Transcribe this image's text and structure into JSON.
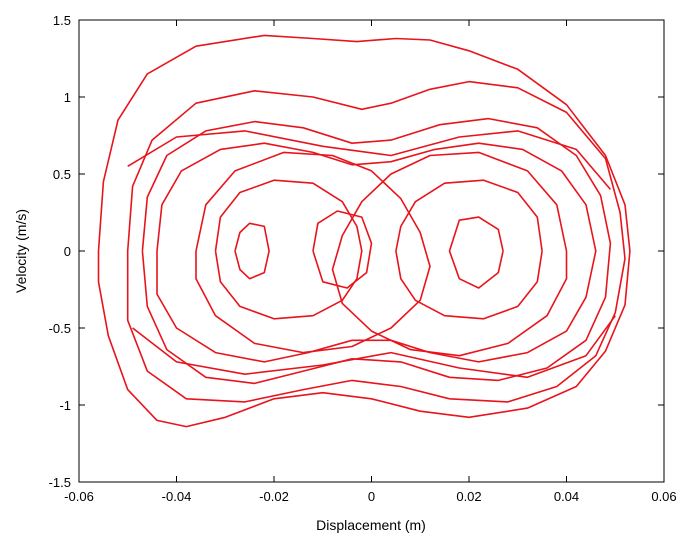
{
  "chart_data": {
    "type": "line",
    "title": "",
    "xlabel": "Displacement (m)",
    "ylabel": "Velocity (m/s)",
    "xlim": [
      -0.06,
      0.06
    ],
    "ylim": [
      -1.5,
      1.5
    ],
    "x_ticks": [
      "-0.06",
      "-0.04",
      "-0.02",
      "0",
      "0.02",
      "0.04",
      "0.06"
    ],
    "y_ticks": [
      "1.5",
      "1",
      "0.5",
      "0",
      "-0.5",
      "-1",
      "-1.5"
    ],
    "x_tick_values": [
      -0.06,
      -0.04,
      -0.02,
      0,
      0.02,
      0.04,
      0.06
    ],
    "y_tick_values": [
      1.5,
      1,
      0.5,
      0,
      -0.5,
      -1,
      -1.5
    ],
    "grid": false,
    "line_color": "#e8141c",
    "series": [
      {
        "values": [
          [
            -0.056,
            0.0
          ],
          [
            -0.055,
            0.45
          ],
          [
            -0.052,
            0.85
          ],
          [
            -0.046,
            1.15
          ],
          [
            -0.036,
            1.33
          ],
          [
            -0.022,
            1.4
          ],
          [
            -0.012,
            1.38
          ],
          [
            -0.003,
            1.36
          ],
          [
            0.005,
            1.38
          ],
          [
            0.012,
            1.37
          ],
          [
            0.02,
            1.3
          ],
          [
            0.03,
            1.18
          ],
          [
            0.04,
            0.95
          ],
          [
            0.048,
            0.62
          ],
          [
            0.052,
            0.3
          ],
          [
            0.053,
            0.0
          ],
          [
            0.052,
            -0.35
          ],
          [
            0.048,
            -0.65
          ],
          [
            0.042,
            -0.88
          ],
          [
            0.032,
            -1.02
          ],
          [
            0.02,
            -1.08
          ],
          [
            0.01,
            -1.04
          ],
          [
            0.0,
            -0.96
          ],
          [
            -0.01,
            -0.92
          ],
          [
            -0.02,
            -0.96
          ],
          [
            -0.03,
            -1.08
          ],
          [
            -0.038,
            -1.14
          ],
          [
            -0.044,
            -1.1
          ],
          [
            -0.05,
            -0.9
          ],
          [
            -0.054,
            -0.55
          ],
          [
            -0.056,
            -0.2
          ],
          [
            -0.056,
            0.0
          ]
        ]
      },
      {
        "values": [
          [
            -0.05,
            0.0
          ],
          [
            -0.049,
            0.42
          ],
          [
            -0.045,
            0.72
          ],
          [
            -0.036,
            0.96
          ],
          [
            -0.024,
            1.04
          ],
          [
            -0.012,
            1.0
          ],
          [
            -0.002,
            0.92
          ],
          [
            0.004,
            0.96
          ],
          [
            0.012,
            1.05
          ],
          [
            0.02,
            1.1
          ],
          [
            0.03,
            1.06
          ],
          [
            0.04,
            0.9
          ],
          [
            0.048,
            0.6
          ],
          [
            0.051,
            0.25
          ],
          [
            0.052,
            -0.05
          ],
          [
            0.05,
            -0.4
          ],
          [
            0.046,
            -0.68
          ],
          [
            0.038,
            -0.88
          ],
          [
            0.028,
            -0.98
          ],
          [
            0.016,
            -0.96
          ],
          [
            0.006,
            -0.88
          ],
          [
            -0.004,
            -0.84
          ],
          [
            -0.014,
            -0.9
          ],
          [
            -0.026,
            -0.98
          ],
          [
            -0.038,
            -0.96
          ],
          [
            -0.046,
            -0.78
          ],
          [
            -0.05,
            -0.45
          ],
          [
            -0.05,
            0.0
          ]
        ]
      },
      {
        "values": [
          [
            -0.047,
            0.0
          ],
          [
            -0.046,
            0.35
          ],
          [
            -0.042,
            0.62
          ],
          [
            -0.034,
            0.78
          ],
          [
            -0.024,
            0.84
          ],
          [
            -0.014,
            0.8
          ],
          [
            -0.004,
            0.7
          ],
          [
            0.004,
            0.72
          ],
          [
            0.014,
            0.82
          ],
          [
            0.024,
            0.86
          ],
          [
            0.034,
            0.8
          ],
          [
            0.042,
            0.62
          ],
          [
            0.047,
            0.36
          ],
          [
            0.049,
            0.05
          ],
          [
            0.048,
            -0.3
          ],
          [
            0.044,
            -0.58
          ],
          [
            0.036,
            -0.76
          ],
          [
            0.026,
            -0.84
          ],
          [
            0.016,
            -0.82
          ],
          [
            0.006,
            -0.72
          ],
          [
            -0.004,
            -0.7
          ],
          [
            -0.014,
            -0.78
          ],
          [
            -0.024,
            -0.86
          ],
          [
            -0.034,
            -0.82
          ],
          [
            -0.042,
            -0.64
          ],
          [
            -0.046,
            -0.36
          ],
          [
            -0.047,
            0.0
          ]
        ]
      },
      {
        "values": [
          [
            -0.044,
            0.0
          ],
          [
            -0.043,
            0.3
          ],
          [
            -0.039,
            0.52
          ],
          [
            -0.031,
            0.66
          ],
          [
            -0.022,
            0.7
          ],
          [
            -0.012,
            0.64
          ],
          [
            -0.004,
            0.56
          ],
          [
            0.004,
            0.58
          ],
          [
            0.013,
            0.66
          ],
          [
            0.022,
            0.7
          ],
          [
            0.031,
            0.66
          ],
          [
            0.039,
            0.52
          ],
          [
            0.044,
            0.3
          ],
          [
            0.046,
            0.0
          ],
          [
            0.044,
            -0.3
          ],
          [
            0.04,
            -0.52
          ],
          [
            0.032,
            -0.66
          ],
          [
            0.022,
            -0.72
          ],
          [
            0.012,
            -0.66
          ],
          [
            0.004,
            -0.58
          ],
          [
            -0.004,
            -0.58
          ],
          [
            -0.013,
            -0.66
          ],
          [
            -0.022,
            -0.72
          ],
          [
            -0.032,
            -0.66
          ],
          [
            -0.04,
            -0.5
          ],
          [
            -0.044,
            -0.28
          ],
          [
            -0.044,
            0.0
          ]
        ]
      },
      {
        "values": [
          [
            -0.036,
            0.0
          ],
          [
            -0.034,
            0.3
          ],
          [
            -0.028,
            0.52
          ],
          [
            -0.018,
            0.64
          ],
          [
            -0.008,
            0.62
          ],
          [
            0.0,
            0.52
          ],
          [
            0.006,
            0.34
          ],
          [
            0.01,
            0.12
          ],
          [
            0.012,
            -0.1
          ],
          [
            0.01,
            -0.32
          ],
          [
            0.004,
            -0.5
          ],
          [
            -0.004,
            -0.62
          ],
          [
            -0.014,
            -0.66
          ],
          [
            -0.024,
            -0.6
          ],
          [
            -0.032,
            -0.42
          ],
          [
            -0.036,
            -0.18
          ],
          [
            -0.036,
            0.0
          ]
        ]
      },
      {
        "values": [
          [
            0.04,
            0.0
          ],
          [
            0.038,
            0.3
          ],
          [
            0.032,
            0.52
          ],
          [
            0.022,
            0.64
          ],
          [
            0.012,
            0.62
          ],
          [
            0.004,
            0.5
          ],
          [
            -0.002,
            0.32
          ],
          [
            -0.006,
            0.1
          ],
          [
            -0.008,
            -0.12
          ],
          [
            -0.006,
            -0.34
          ],
          [
            0.0,
            -0.52
          ],
          [
            0.008,
            -0.64
          ],
          [
            0.018,
            -0.68
          ],
          [
            0.028,
            -0.6
          ],
          [
            0.036,
            -0.42
          ],
          [
            0.04,
            -0.18
          ],
          [
            0.04,
            0.0
          ]
        ]
      },
      {
        "values": [
          [
            -0.032,
            0.0
          ],
          [
            -0.031,
            0.22
          ],
          [
            -0.027,
            0.38
          ],
          [
            -0.02,
            0.46
          ],
          [
            -0.012,
            0.44
          ],
          [
            -0.006,
            0.32
          ],
          [
            -0.003,
            0.16
          ],
          [
            -0.002,
            0.0
          ],
          [
            -0.003,
            -0.18
          ],
          [
            -0.006,
            -0.32
          ],
          [
            -0.012,
            -0.42
          ],
          [
            -0.02,
            -0.44
          ],
          [
            -0.027,
            -0.36
          ],
          [
            -0.031,
            -0.2
          ],
          [
            -0.032,
            0.0
          ]
        ]
      },
      {
        "values": [
          [
            0.035,
            0.0
          ],
          [
            0.034,
            0.22
          ],
          [
            0.03,
            0.38
          ],
          [
            0.023,
            0.46
          ],
          [
            0.015,
            0.44
          ],
          [
            0.009,
            0.32
          ],
          [
            0.006,
            0.16
          ],
          [
            0.005,
            0.0
          ],
          [
            0.006,
            -0.18
          ],
          [
            0.009,
            -0.32
          ],
          [
            0.015,
            -0.42
          ],
          [
            0.023,
            -0.44
          ],
          [
            0.03,
            -0.36
          ],
          [
            0.034,
            -0.2
          ],
          [
            0.035,
            0.0
          ]
        ]
      },
      {
        "values": [
          [
            -0.028,
            0.0
          ],
          [
            -0.027,
            0.12
          ],
          [
            -0.025,
            0.18
          ],
          [
            -0.022,
            0.16
          ],
          [
            -0.021,
            0.0
          ],
          [
            -0.022,
            -0.14
          ],
          [
            -0.025,
            -0.18
          ],
          [
            -0.027,
            -0.12
          ],
          [
            -0.028,
            0.0
          ]
        ]
      },
      {
        "values": [
          [
            0.027,
            0.0
          ],
          [
            0.026,
            0.14
          ],
          [
            0.022,
            0.22
          ],
          [
            0.018,
            0.2
          ],
          [
            0.016,
            0.0
          ],
          [
            0.018,
            -0.18
          ],
          [
            0.022,
            -0.24
          ],
          [
            0.026,
            -0.14
          ],
          [
            0.027,
            0.0
          ]
        ]
      },
      {
        "values": [
          [
            -0.012,
            0.0
          ],
          [
            -0.011,
            0.18
          ],
          [
            -0.007,
            0.26
          ],
          [
            -0.002,
            0.22
          ],
          [
            0.0,
            0.05
          ],
          [
            -0.001,
            -0.14
          ],
          [
            -0.005,
            -0.24
          ],
          [
            -0.01,
            -0.2
          ],
          [
            -0.012,
            0.0
          ]
        ]
      },
      {
        "values": [
          [
            -0.05,
            0.55
          ],
          [
            -0.04,
            0.74
          ],
          [
            -0.026,
            0.78
          ],
          [
            -0.01,
            0.68
          ],
          [
            0.004,
            0.62
          ],
          [
            0.018,
            0.74
          ],
          [
            0.03,
            0.78
          ],
          [
            0.042,
            0.66
          ],
          [
            0.049,
            0.4
          ]
        ]
      },
      {
        "values": [
          [
            -0.049,
            -0.5
          ],
          [
            -0.04,
            -0.72
          ],
          [
            -0.026,
            -0.8
          ],
          [
            -0.01,
            -0.74
          ],
          [
            0.004,
            -0.66
          ],
          [
            0.018,
            -0.76
          ],
          [
            0.032,
            -0.82
          ],
          [
            0.044,
            -0.68
          ],
          [
            0.05,
            -0.42
          ]
        ]
      }
    ]
  }
}
